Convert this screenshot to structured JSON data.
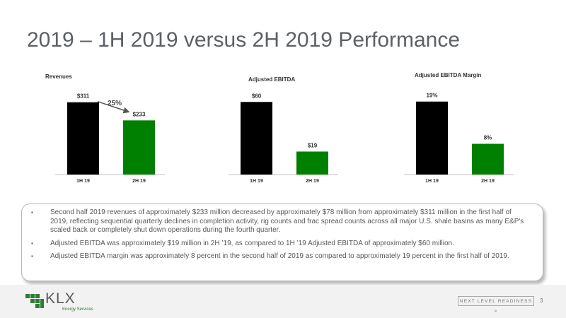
{
  "page": {
    "title": "2019 – 1H 2019 versus 2H 2019 Performance",
    "page_number": "3",
    "tagline": "NEXT LEVEL READINESS >"
  },
  "logo": {
    "text": "KLX",
    "subtext": "Energy Services"
  },
  "colors": {
    "black_bar": "#000000",
    "green_bar": "#008000",
    "title": "#5c6166",
    "axis": "#bfbfbf"
  },
  "chart_data": [
    {
      "type": "bar",
      "title": "Revenues",
      "categories": [
        "1H 19",
        "2H 19"
      ],
      "values": [
        311,
        233
      ],
      "labels": [
        "$311",
        "$233"
      ],
      "colors": [
        "#000000",
        "#008000"
      ],
      "ylim": [
        0,
        380
      ],
      "annotation": {
        "text": "25%",
        "arrow": "from 1H 19 bar to 2H 19 bar"
      }
    },
    {
      "type": "bar",
      "title": "Adjusted EBITDA",
      "categories": [
        "1H 19",
        "2H 19"
      ],
      "values": [
        60,
        19
      ],
      "labels": [
        "$60",
        "$19"
      ],
      "colors": [
        "#000000",
        "#008000"
      ],
      "ylim": [
        0,
        73
      ]
    },
    {
      "type": "bar",
      "title": "Adjusted EBITDA Margin",
      "categories": [
        "1H 19",
        "2H 19"
      ],
      "values": [
        19,
        8
      ],
      "labels": [
        "19%",
        "8%"
      ],
      "colors": [
        "#000000",
        "#008000"
      ],
      "ylim": [
        0,
        23
      ]
    }
  ],
  "bullets": [
    {
      "marker": "▪",
      "text": "Second half 2019 revenues of approximately $233 million decreased by approximately $78 million from approximately $311 million in the first half of 2019, reflecting sequential quarterly declines in completion activity, rig counts and frac spread counts across all major U.S. shale basins as many E&P's scaled back or completely shut down operations during the fourth quarter."
    },
    {
      "marker": "▪",
      "text": "Adjusted EBITDA was approximately $19 million in 2H ’19, as compared to 1H ’19 Adjusted EBITDA of approximately $60 million."
    },
    {
      "marker": "▪",
      "text": "Adjusted EBITDA margin was approximately 8 percent in the second half of 2019 as compared to approximately 19 percent in the first half of 2019."
    }
  ]
}
